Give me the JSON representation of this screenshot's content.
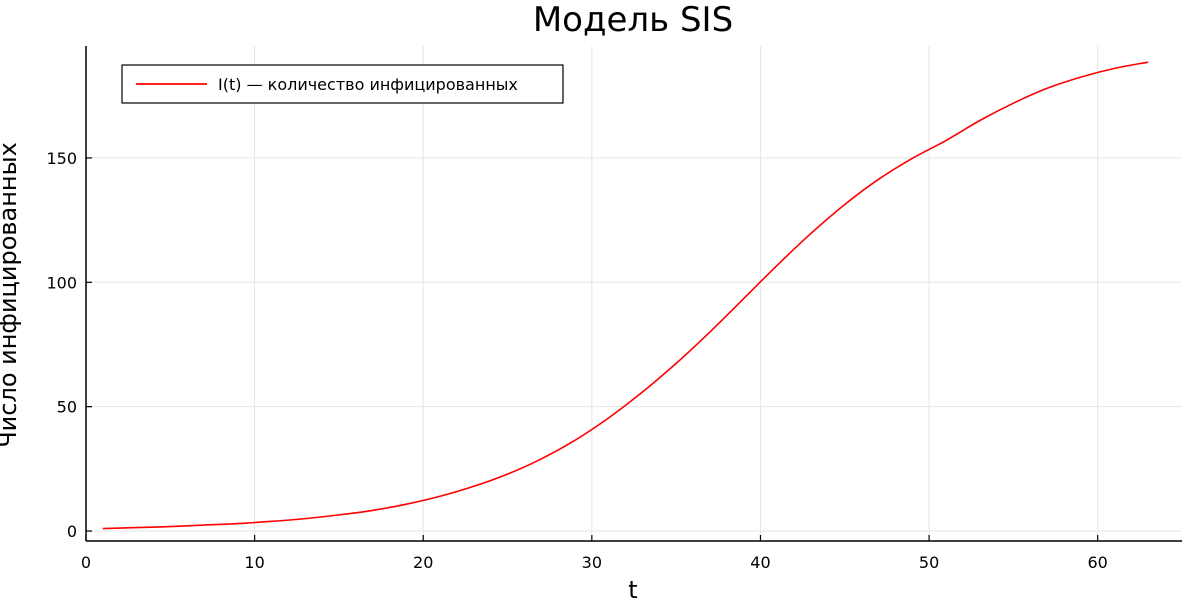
{
  "chart_data": {
    "type": "line",
    "title": "Модель SIS",
    "xlabel": "t",
    "ylabel": "Число инфицированных",
    "xlim": [
      0,
      65
    ],
    "ylim": [
      -4,
      195
    ],
    "xticks": [
      0,
      10,
      20,
      30,
      40,
      50,
      60
    ],
    "yticks": [
      0,
      50,
      100,
      150
    ],
    "grid": true,
    "legend_position": "top-left",
    "series": [
      {
        "name": "I(t) — количество инфицированных",
        "color": "#ff0000",
        "x": [
          1,
          3,
          5,
          7,
          9,
          11,
          13,
          15,
          17,
          19,
          21,
          23,
          25,
          27,
          29,
          31,
          33,
          35,
          37,
          39,
          41,
          43,
          45,
          47,
          49,
          51,
          53,
          55,
          57,
          59,
          61,
          63
        ],
        "y": [
          1,
          1.4,
          1.8,
          2.4,
          3.0,
          3.9,
          5.0,
          6.5,
          8.3,
          10.8,
          14,
          18,
          22.9,
          29,
          36.5,
          45.5,
          55.9,
          67.4,
          80,
          93.4,
          106.9,
          119.7,
          131.3,
          141.4,
          149.8,
          157,
          165,
          172,
          178,
          182.5,
          186,
          188.5
        ]
      }
    ]
  }
}
